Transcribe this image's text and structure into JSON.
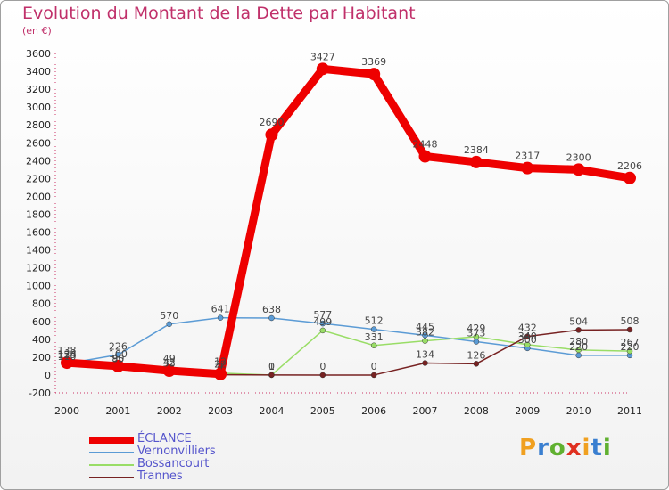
{
  "header": {
    "title": "Evolution du Montant de la Dette par Habitant",
    "subtitle": "(en €)"
  },
  "logo": {
    "text": "Proxiti",
    "colors": [
      "#f0a020",
      "#3a7fd0",
      "#60b030",
      "#e03020",
      "#f0a020",
      "#3a7fd0",
      "#60b030"
    ]
  },
  "chart_data": {
    "type": "line",
    "x": [
      "2000",
      "2001",
      "2002",
      "2003",
      "2004",
      "2005",
      "2006",
      "2007",
      "2008",
      "2009",
      "2010",
      "2011"
    ],
    "ylim": [
      -200,
      3600
    ],
    "yticks": [
      -200,
      0,
      200,
      400,
      600,
      800,
      1000,
      1200,
      1400,
      1600,
      1800,
      2000,
      2200,
      2400,
      2600,
      2800,
      3000,
      3200,
      3400,
      3600
    ],
    "grid": false,
    "legend_position": "bottom-left",
    "series": [
      {
        "name": "ÉCLANCE",
        "color": "#ee0000",
        "values": [
          138,
          100,
          49,
          12,
          2690,
          3427,
          3369,
          2448,
          2384,
          2317,
          2300,
          2206
        ]
      },
      {
        "name": "Vernonvilliers",
        "color": "#5b9bd5",
        "values": [
          129,
          226,
          570,
          641,
          638,
          577,
          512,
          445,
          373,
          300,
          220,
          220
        ]
      },
      {
        "name": "Bossancourt",
        "color": "#99dd66",
        "values": [
          110,
          90,
          42,
          22,
          0,
          499,
          331,
          382,
          429,
          340,
          280,
          267
        ]
      },
      {
        "name": "Trannes",
        "color": "#772222",
        "values": [
          134,
          85,
          33,
          4,
          1,
          0,
          0,
          134,
          126,
          432,
          504,
          508
        ]
      }
    ]
  }
}
